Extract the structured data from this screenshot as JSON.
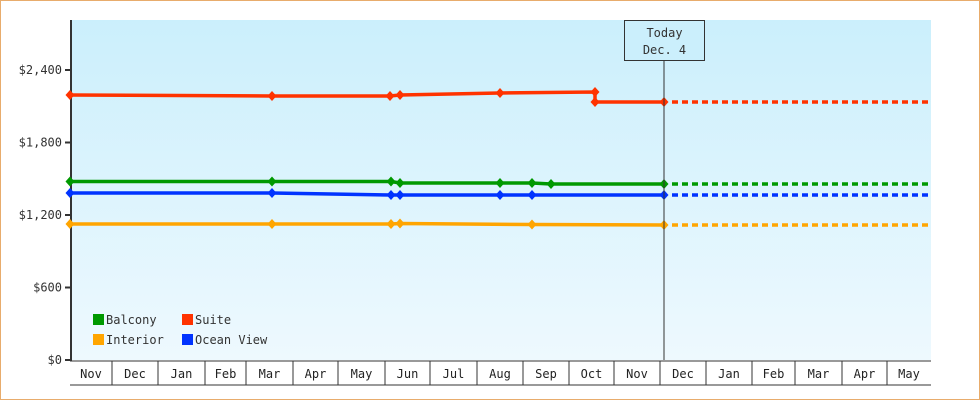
{
  "chart_data": {
    "type": "line",
    "title": "",
    "xlabel": "",
    "ylabel": "",
    "ylim": [
      0,
      2800
    ],
    "y_ticks": [
      "$0",
      "$600",
      "$1,200",
      "$1,800",
      "$2,400"
    ],
    "x_ticks": [
      "Nov",
      "Dec",
      "Jan",
      "Feb",
      "Mar",
      "Apr",
      "May",
      "Jun",
      "Jul",
      "Aug",
      "Sep",
      "Oct",
      "Nov",
      "Dec",
      "Jan",
      "Feb",
      "Mar",
      "Apr",
      "May"
    ],
    "today_marker": {
      "line1": "Today",
      "line2": "Dec. 4"
    },
    "legend": [
      {
        "name": "Balcony",
        "color": "#009900"
      },
      {
        "name": "Suite",
        "color": "#ff3300"
      },
      {
        "name": "Interior",
        "color": "#ffa500"
      },
      {
        "name": "Ocean View",
        "color": "#0033ff"
      }
    ],
    "series": [
      {
        "name": "Suite",
        "color": "#ff3300",
        "points": [
          [
            "Nov",
            2193
          ],
          [
            "Mar",
            2185
          ],
          [
            "early Jun",
            2185
          ],
          [
            "Jun",
            2193
          ],
          [
            "Aug",
            2210
          ],
          [
            "Oct",
            2218
          ],
          [
            "Oct",
            2135
          ],
          [
            "Dec 4",
            2135
          ]
        ],
        "projection": 2135
      },
      {
        "name": "Balcony",
        "color": "#009900",
        "points": [
          [
            "Nov",
            1477
          ],
          [
            "Mar",
            1477
          ],
          [
            "early Jun",
            1477
          ],
          [
            "Jun",
            1465
          ],
          [
            "Aug",
            1465
          ],
          [
            "Sep",
            1465
          ],
          [
            "mid Sep",
            1457
          ],
          [
            "Dec 4",
            1457
          ]
        ],
        "projection": 1457
      },
      {
        "name": "Ocean View",
        "color": "#0033ff",
        "points": [
          [
            "Nov",
            1382
          ],
          [
            "Mar",
            1382
          ],
          [
            "early Jun",
            1374
          ],
          [
            "Jun",
            1374
          ],
          [
            "Aug",
            1374
          ],
          [
            "Sep",
            1374
          ],
          [
            "Dec 4",
            1366
          ]
        ],
        "projection": 1366
      },
      {
        "name": "Interior",
        "color": "#ffa500",
        "points": [
          [
            "Nov",
            1126
          ],
          [
            "Mar",
            1126
          ],
          [
            "early Jun",
            1126
          ],
          [
            "Jun",
            1130
          ],
          [
            "Sep",
            1126
          ],
          [
            "Dec 4",
            1117
          ]
        ],
        "projection": 1117
      }
    ]
  }
}
